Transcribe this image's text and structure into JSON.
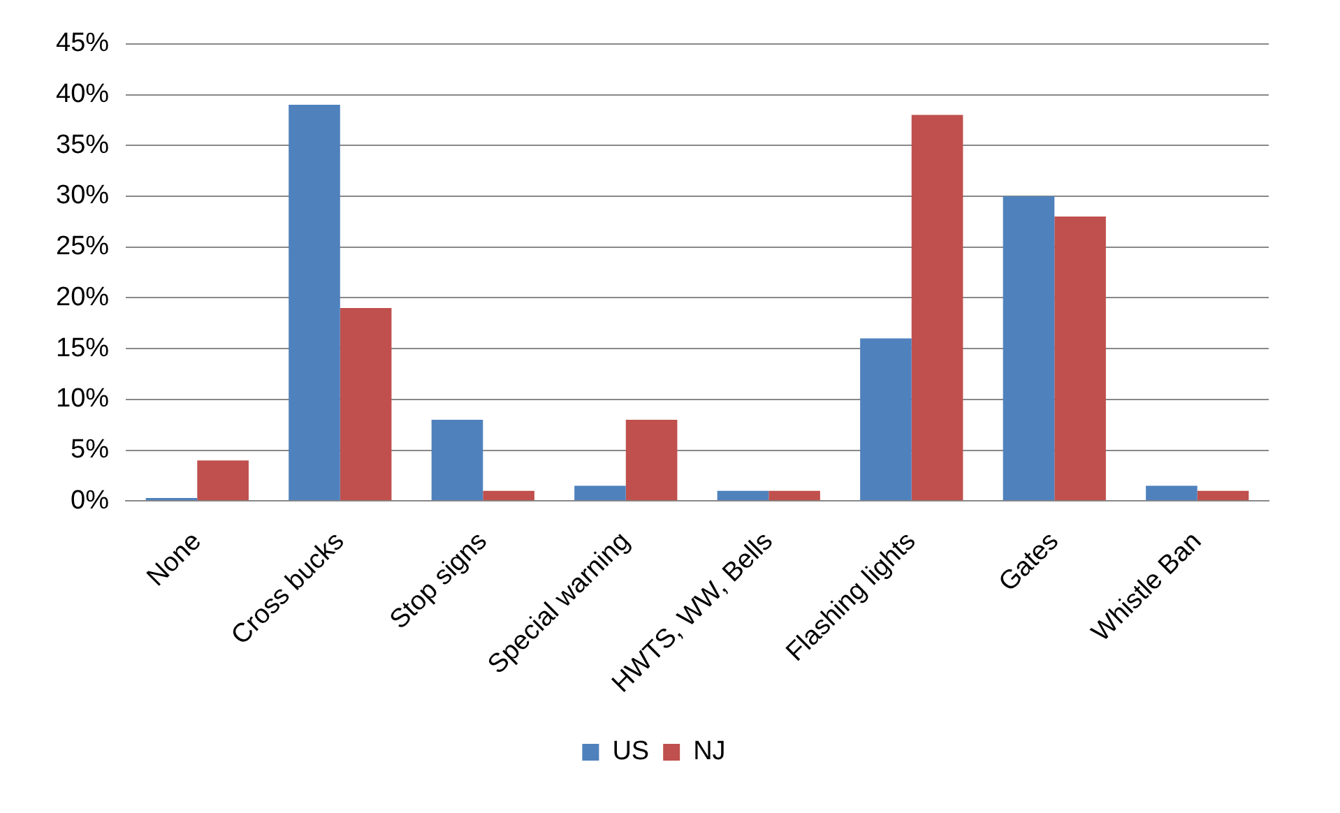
{
  "chart_data": {
    "type": "bar",
    "categories": [
      "None",
      "Cross bucks",
      "Stop signs",
      "Special warning",
      "HWTS, WW, Bells",
      "Flashing lights",
      "Gates",
      "Whistle Ban"
    ],
    "series": [
      {
        "name": "US",
        "color": "#4f81bd",
        "values": [
          0.3,
          39,
          8,
          1.5,
          1,
          16,
          30,
          1.5
        ]
      },
      {
        "name": "NJ",
        "color": "#c0504d",
        "values": [
          4,
          19,
          1,
          8,
          1,
          38,
          28,
          1
        ]
      }
    ],
    "ylim": [
      0,
      45
    ],
    "yticks": [
      {
        "value": 0,
        "label": "0%"
      },
      {
        "value": 5,
        "label": "5%"
      },
      {
        "value": 10,
        "label": "10%"
      },
      {
        "value": 15,
        "label": "15%"
      },
      {
        "value": 20,
        "label": "20%"
      },
      {
        "value": 25,
        "label": "25%"
      },
      {
        "value": 30,
        "label": "30%"
      },
      {
        "value": 35,
        "label": "35%"
      },
      {
        "value": 40,
        "label": "40%"
      },
      {
        "value": 45,
        "label": "45%"
      }
    ],
    "grid": "y",
    "legend": "bottom"
  }
}
